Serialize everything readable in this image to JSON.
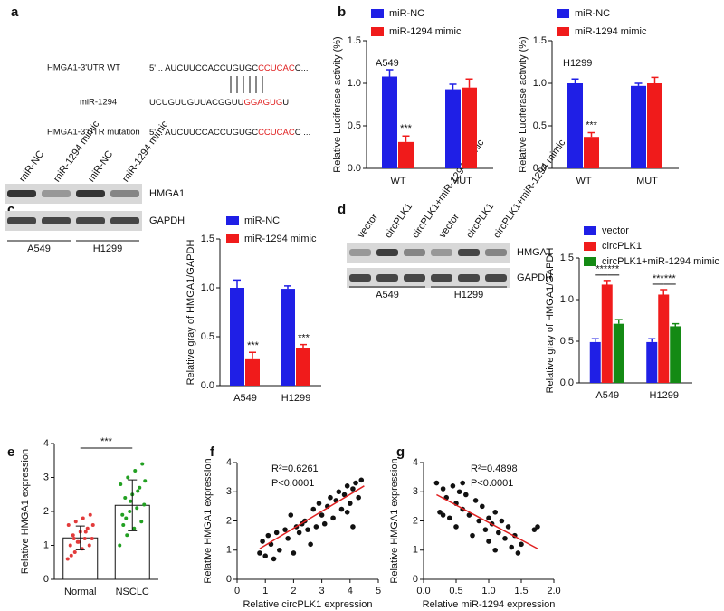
{
  "panel_labels": [
    "a",
    "b",
    "c",
    "d",
    "e",
    "f",
    "g"
  ],
  "sequence": {
    "rows": [
      {
        "label": "HMGA1-3'UTR WT",
        "prefix": "5'... AUCUUCCACCUGUGC",
        "site": "CCUCAC",
        "suffix": "C..."
      },
      {
        "label": "miR-1294",
        "prefix": "UCUGUUGUUACGGUU",
        "site": "GGAGUG",
        "suffix": "U"
      },
      {
        "label": "HMGA1-3'UTR mutation",
        "prefix": "5'... AUCUUCCACCUGUGC",
        "site": "CCUCAC",
        "suffix": "C ..."
      }
    ]
  },
  "blots": [
    {
      "lanes": [
        "miR-NC",
        "miR-1294 mimic",
        "miR-NC",
        "miR-1294 mimic"
      ],
      "bands": [
        "HMGA1",
        "GAPDH"
      ],
      "groups": [
        "A549",
        "H1299"
      ]
    },
    {
      "lanes": [
        "vector",
        "circPLK1",
        "circPLK1+miR-1294 mimic",
        "vector",
        "circPLK1",
        "circPLK1+miR-1294 mimic"
      ],
      "bands": [
        "HMGA1",
        "GAPDH"
      ],
      "groups": [
        "A549",
        "H1299"
      ]
    }
  ],
  "chart_data": [
    {
      "type": "bar",
      "ylabel": "Relative Luciferase activity (%)",
      "categories": [
        "WT",
        "MUT"
      ],
      "series": [
        {
          "name": "miR-NC",
          "color": "#1f1fe6",
          "values": [
            1.08,
            0.93
          ],
          "errors": [
            0.08,
            0.06
          ]
        },
        {
          "name": "miR-1294 mimic",
          "color": "#f01b1b",
          "values": [
            0.31,
            0.95
          ],
          "errors": [
            0.07,
            0.1
          ]
        }
      ],
      "ylim": [
        0,
        1.5
      ],
      "yticks": [
        {
          "value": 0,
          "label": "0.0"
        },
        {
          "value": 0.5,
          "label": "0.5"
        },
        {
          "value": 1,
          "label": "1.0"
        },
        {
          "value": 1.5,
          "label": "1.5"
        }
      ],
      "annotations": [
        "A549",
        "***"
      ]
    },
    {
      "type": "bar",
      "ylabel": "Relative Luciferase activity (%)",
      "categories": [
        "WT",
        "MUT"
      ],
      "series": [
        {
          "name": "miR-NC",
          "color": "#1f1fe6",
          "values": [
            1.0,
            0.97
          ],
          "errors": [
            0.05,
            0.03
          ]
        },
        {
          "name": "miR-1294 mimic",
          "color": "#f01b1b",
          "values": [
            0.37,
            1.0
          ],
          "errors": [
            0.05,
            0.07
          ]
        }
      ],
      "ylim": [
        0,
        1.5
      ],
      "yticks": [
        {
          "value": 0,
          "label": "0.0"
        },
        {
          "value": 0.5,
          "label": "0.5"
        },
        {
          "value": 1,
          "label": "1.0"
        },
        {
          "value": 1.5,
          "label": "1.5"
        }
      ],
      "annotations": [
        "H1299",
        "***"
      ]
    },
    {
      "type": "bar",
      "ylabel": "Relative gray of HMGA1/GAPDH",
      "categories": [
        "A549",
        "H1299"
      ],
      "series": [
        {
          "name": "miR-NC",
          "color": "#1f1fe6",
          "values": [
            1.0,
            0.99
          ],
          "errors": [
            0.08,
            0.03
          ]
        },
        {
          "name": "miR-1294 mimic",
          "color": "#f01b1b",
          "values": [
            0.27,
            0.38
          ],
          "errors": [
            0.07,
            0.04
          ]
        }
      ],
      "ylim": [
        0,
        1.5
      ],
      "yticks": [
        {
          "value": 0,
          "label": "0.0"
        },
        {
          "value": 0.5,
          "label": "0.5"
        },
        {
          "value": 1,
          "label": "1.0"
        },
        {
          "value": 1.5,
          "label": "1.5"
        }
      ],
      "annotations": [
        "***",
        "***"
      ]
    },
    {
      "type": "bar",
      "ylabel": "Relative gray of HMGA1/GAPDH",
      "categories": [
        "A549",
        "H1299"
      ],
      "series": [
        {
          "name": "vector",
          "color": "#1f1fe6",
          "values": [
            0.49,
            0.49
          ],
          "errors": [
            0.04,
            0.04
          ]
        },
        {
          "name": "circPLK1",
          "color": "#f01b1b",
          "values": [
            1.18,
            1.06
          ],
          "errors": [
            0.05,
            0.06
          ]
        },
        {
          "name": "circPLK1+miR-1294 mimic",
          "color": "#148a14",
          "values": [
            0.71,
            0.68
          ],
          "errors": [
            0.05,
            0.03
          ]
        }
      ],
      "ylim": [
        0,
        1.5
      ],
      "yticks": [
        {
          "value": 0,
          "label": "0.0"
        },
        {
          "value": 0.5,
          "label": "0.5"
        },
        {
          "value": 1,
          "label": "1.0"
        },
        {
          "value": 1.5,
          "label": "1.5"
        }
      ],
      "annotations": [
        "***",
        "***",
        "***",
        "***"
      ]
    },
    {
      "type": "dotbar",
      "ylabel": "Relative HMGA1 expression",
      "categories": [
        "Normal",
        "NSCLC"
      ],
      "values": [
        1.22,
        2.18
      ],
      "errors": [
        0.35,
        0.75
      ],
      "points": [
        [
          0.6,
          0.8,
          0.9,
          1.0,
          1.0,
          1.1,
          1.2,
          1.2,
          1.3,
          1.4,
          1.5,
          1.6,
          1.7,
          1.8,
          1.9,
          0.7,
          1.1,
          1.4,
          1.6,
          1.2
        ],
        [
          1.0,
          1.3,
          1.5,
          1.7,
          1.9,
          2.0,
          2.1,
          2.2,
          2.4,
          2.5,
          2.7,
          2.8,
          3.0,
          3.2,
          3.4,
          1.6,
          2.3,
          2.6,
          2.9,
          1.8
        ]
      ],
      "colors": [
        "#e23b3b",
        "#22a022"
      ],
      "ylim": [
        0,
        4
      ],
      "yticks": [
        0,
        1,
        2,
        3,
        4
      ],
      "annotations": [
        "***"
      ]
    },
    {
      "type": "scatter",
      "xlabel": "Relative circPLK1 expression",
      "ylabel": "Relative HMGA1 expression",
      "x": [
        0.8,
        0.9,
        1.0,
        1.1,
        1.2,
        1.3,
        1.4,
        1.5,
        1.7,
        1.8,
        1.9,
        2.0,
        2.1,
        2.2,
        2.3,
        2.4,
        2.5,
        2.6,
        2.7,
        2.8,
        2.9,
        3.0,
        3.1,
        3.2,
        3.3,
        3.4,
        3.5,
        3.6,
        3.7,
        3.8,
        3.9,
        4.0,
        4.1,
        4.2,
        4.3,
        4.4,
        4.1,
        3.9
      ],
      "y": [
        0.9,
        1.3,
        0.8,
        1.5,
        1.2,
        0.7,
        1.6,
        1.0,
        1.7,
        1.4,
        2.2,
        0.9,
        1.8,
        1.6,
        1.9,
        2.0,
        1.7,
        1.2,
        2.4,
        1.8,
        2.6,
        2.2,
        1.9,
        2.5,
        2.8,
        2.1,
        2.7,
        3.0,
        2.4,
        2.9,
        3.2,
        2.6,
        3.1,
        3.3,
        2.8,
        3.4,
        1.8,
        2.3
      ],
      "color": "#111",
      "trendline": {
        "x": [
          0.8,
          4.5
        ],
        "y": [
          1.05,
          3.2
        ],
        "color": "#e02020"
      },
      "xlim": [
        0,
        5
      ],
      "xticks": [
        0,
        1,
        2,
        3,
        4,
        5
      ],
      "ylim": [
        0,
        4
      ],
      "yticks": [
        0,
        1,
        2,
        3,
        4
      ],
      "annotations": [
        "R²=0.6261",
        "P<0.0001"
      ]
    },
    {
      "type": "scatter",
      "xlabel": "Relative miR-1294 expression",
      "ylabel": "Relative HMGA1 expression",
      "x": [
        0.2,
        0.25,
        0.3,
        0.35,
        0.4,
        0.45,
        0.5,
        0.5,
        0.55,
        0.6,
        0.65,
        0.7,
        0.75,
        0.8,
        0.85,
        0.9,
        0.95,
        1.0,
        1.0,
        1.05,
        1.1,
        1.1,
        1.15,
        1.2,
        1.25,
        1.3,
        1.35,
        1.4,
        1.45,
        1.5,
        1.7,
        1.75,
        0.3,
        0.6
      ],
      "y": [
        3.3,
        2.3,
        3.1,
        2.8,
        2.1,
        3.2,
        2.6,
        1.8,
        3.0,
        2.4,
        2.9,
        2.2,
        1.5,
        2.7,
        2.0,
        2.5,
        1.7,
        2.1,
        1.3,
        1.9,
        2.3,
        1.0,
        1.6,
        2.0,
        1.4,
        1.8,
        1.1,
        1.5,
        0.9,
        1.2,
        1.7,
        1.8,
        2.2,
        3.3
      ],
      "color": "#111",
      "trendline": {
        "x": [
          0.2,
          1.75
        ],
        "y": [
          2.9,
          1.05
        ],
        "color": "#e02020"
      },
      "xlim": [
        0,
        2
      ],
      "xticks": [
        {
          "value": 0,
          "label": "0.0"
        },
        {
          "value": 0.5,
          "label": "0.5"
        },
        {
          "value": 1,
          "label": "1.0"
        },
        {
          "value": 1.5,
          "label": "1.5"
        },
        {
          "value": 2,
          "label": "2.0"
        }
      ],
      "ylim": [
        0,
        4
      ],
      "yticks": [
        0,
        1,
        2,
        3,
        4
      ],
      "annotations": [
        "R²=0.4898",
        "P<0.0001"
      ]
    }
  ]
}
